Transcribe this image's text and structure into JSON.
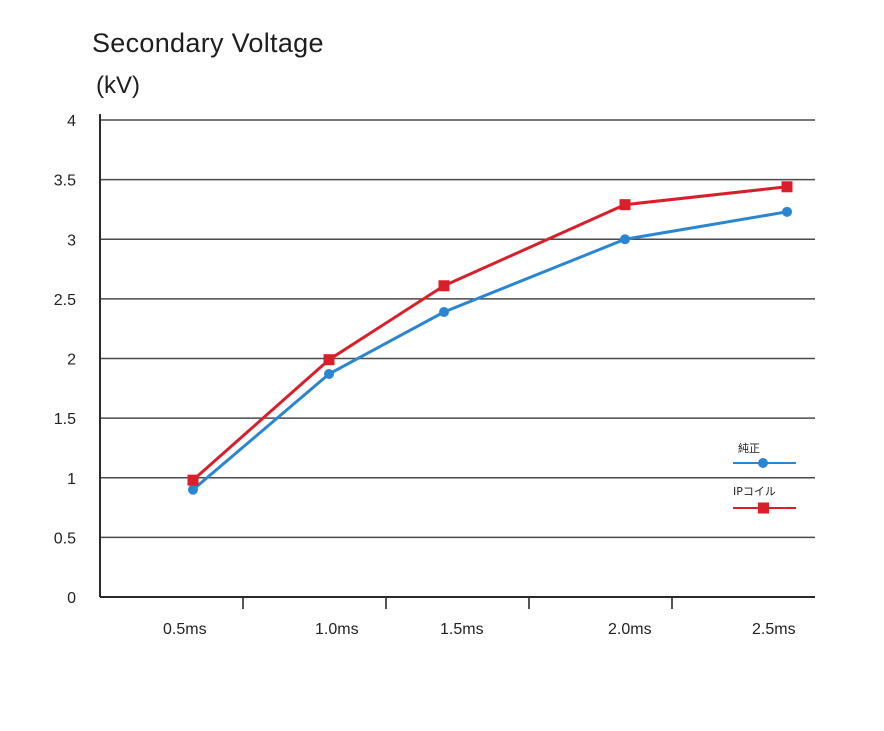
{
  "chart_data": {
    "type": "line",
    "title": "Secondary Voltage",
    "ylabel": "(kV)",
    "xlabel": "",
    "categories": [
      "0.5ms",
      "1.0ms",
      "1.5ms",
      "2.0ms",
      "2.5ms"
    ],
    "yticks": [
      "0",
      "0.5",
      "1",
      "1.5",
      "2",
      "2.5",
      "3",
      "3.5",
      "4"
    ],
    "ylim": [
      0,
      4
    ],
    "grid": true,
    "legend_position": "right",
    "series": [
      {
        "name": "純正",
        "color": "#2b86d2",
        "marker": "circle",
        "values": [
          0.9,
          1.87,
          2.39,
          3.0,
          3.23
        ]
      },
      {
        "name": "IPコイル",
        "color": "#d9202a",
        "marker": "square",
        "values": [
          0.98,
          1.99,
          2.61,
          3.29,
          3.44
        ]
      }
    ]
  }
}
